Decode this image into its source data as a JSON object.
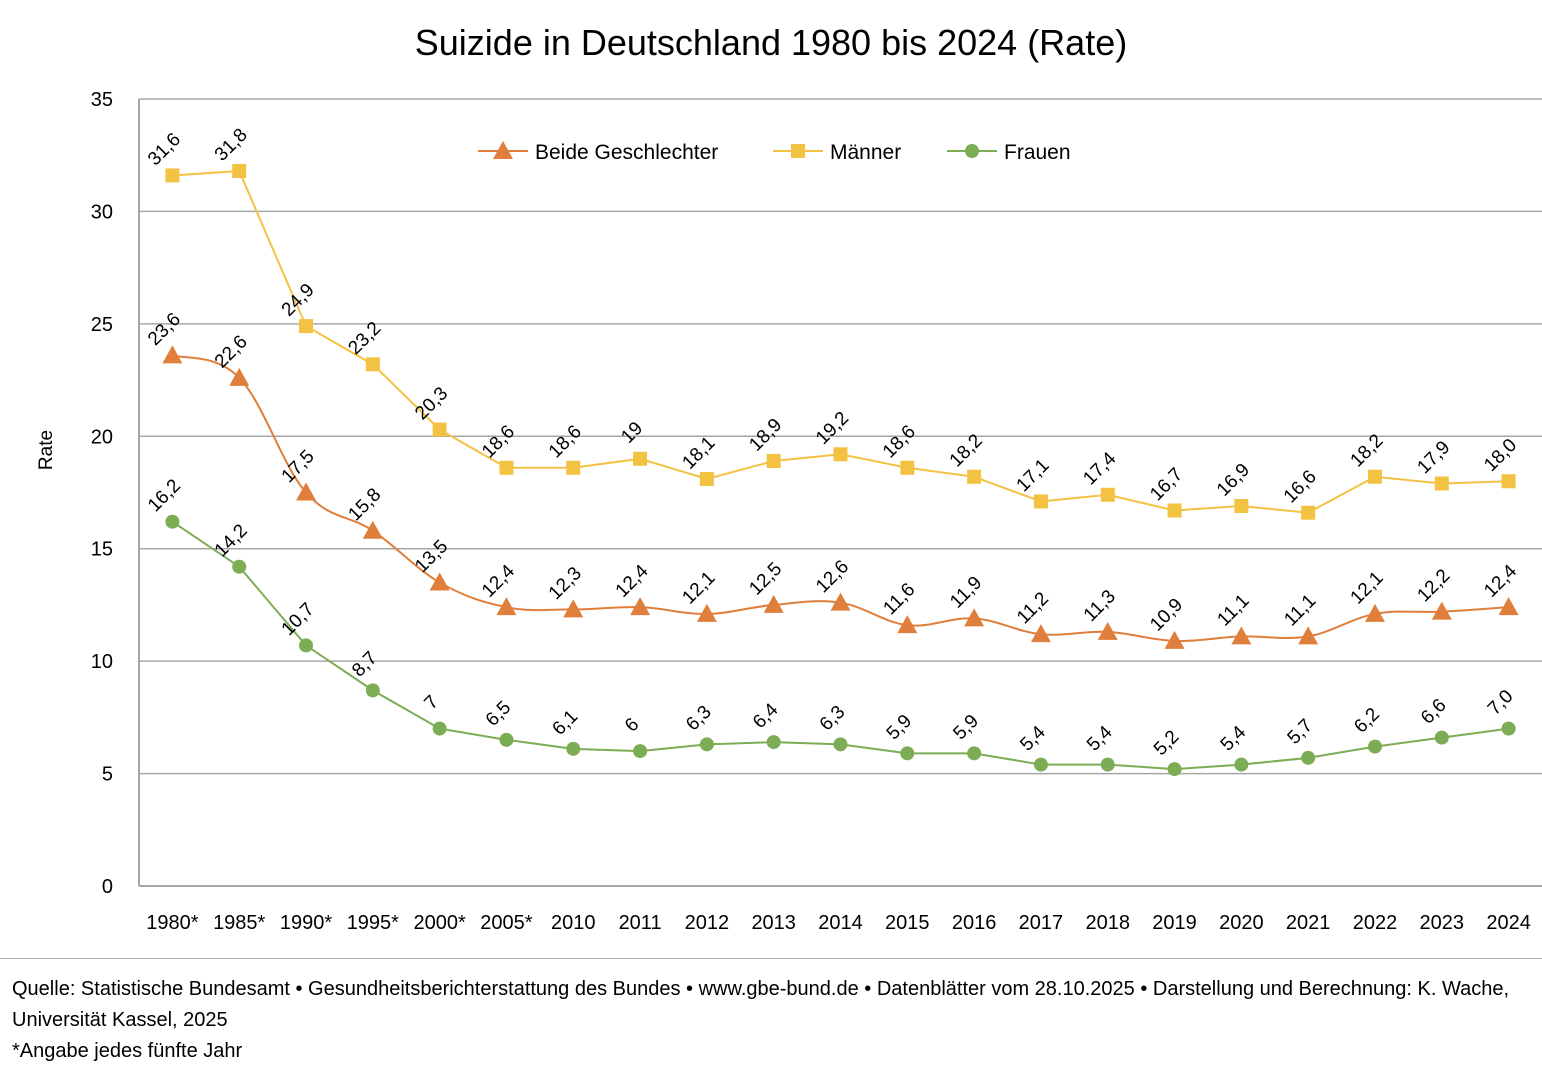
{
  "chart_data": {
    "type": "line",
    "title": "Suizide in Deutschland 1980 bis 2024 (Rate)",
    "xlabel": "",
    "ylabel": "Rate",
    "ylim": [
      0,
      35
    ],
    "yticks": [
      0,
      5,
      10,
      15,
      20,
      25,
      30,
      35
    ],
    "grid": true,
    "legend_position": "top-center",
    "categories": [
      "1980*",
      "1985*",
      "1990*",
      "1995*",
      "2000*",
      "2005*",
      "2010",
      "2011",
      "2012",
      "2013",
      "2014",
      "2015",
      "2016",
      "2017",
      "2018",
      "2019",
      "2020",
      "2021",
      "2022",
      "2023",
      "2024"
    ],
    "series": [
      {
        "name": "Beide Geschlechter",
        "color": "#E07E3C",
        "marker": "triangle",
        "smooth": true,
        "values": [
          23.6,
          22.6,
          17.5,
          15.8,
          13.5,
          12.4,
          12.3,
          12.4,
          12.1,
          12.5,
          12.6,
          11.6,
          11.9,
          11.2,
          11.3,
          10.9,
          11.1,
          11.1,
          12.1,
          12.2,
          12.4
        ],
        "labels": [
          "23,6",
          "22,6",
          "17,5",
          "15,8",
          "13,5",
          "12,4",
          "12,3",
          "12,4",
          "12,1",
          "12,5",
          "12,6",
          "11,6",
          "11,9",
          "11,2",
          "11,3",
          "10,9",
          "11,1",
          "11,1",
          "12,1",
          "12,2",
          "12,4"
        ]
      },
      {
        "name": "Männer",
        "color": "#F4C242",
        "marker": "square",
        "smooth": false,
        "values": [
          31.6,
          31.8,
          24.9,
          23.2,
          20.3,
          18.6,
          18.6,
          19.0,
          18.1,
          18.9,
          19.2,
          18.6,
          18.2,
          17.1,
          17.4,
          16.7,
          16.9,
          16.6,
          18.2,
          17.9,
          18.0
        ],
        "labels": [
          "31,6",
          "31,8",
          "24,9",
          "23,2",
          "20,3",
          "18,6",
          "18,6",
          "19",
          "18,1",
          "18,9",
          "19,2",
          "18,6",
          "18,2",
          "17,1",
          "17,4",
          "16,7",
          "16,9",
          "16,6",
          "18,2",
          "17,9",
          "18,0"
        ]
      },
      {
        "name": "Frauen",
        "color": "#7CAC54",
        "marker": "circle",
        "smooth": false,
        "values": [
          16.2,
          14.2,
          10.7,
          8.7,
          7.0,
          6.5,
          6.1,
          6.0,
          6.3,
          6.4,
          6.3,
          5.9,
          5.9,
          5.4,
          5.4,
          5.2,
          5.4,
          5.7,
          6.2,
          6.6,
          7.0
        ],
        "labels": [
          "16,2",
          "14,2",
          "10,7",
          "8,7",
          "7",
          "6,5",
          "6,1",
          "6",
          "6,3",
          "6,4",
          "6,3",
          "5,9",
          "5,9",
          "5,4",
          "5,4",
          "5,2",
          "5,4",
          "5,7",
          "6,2",
          "6,6",
          "7,0"
        ]
      }
    ]
  },
  "footer": {
    "source_line": "Quelle: Statistische Bundesamt • Gesundheitsberichterstattung des Bundes • www.gbe-bund.de • Datenblätter vom 28.10.2025 • Darstellung und Berechnung: K. Wache, Universität Kassel, 2025",
    "note": "*Angabe jedes fünfte Jahr"
  }
}
